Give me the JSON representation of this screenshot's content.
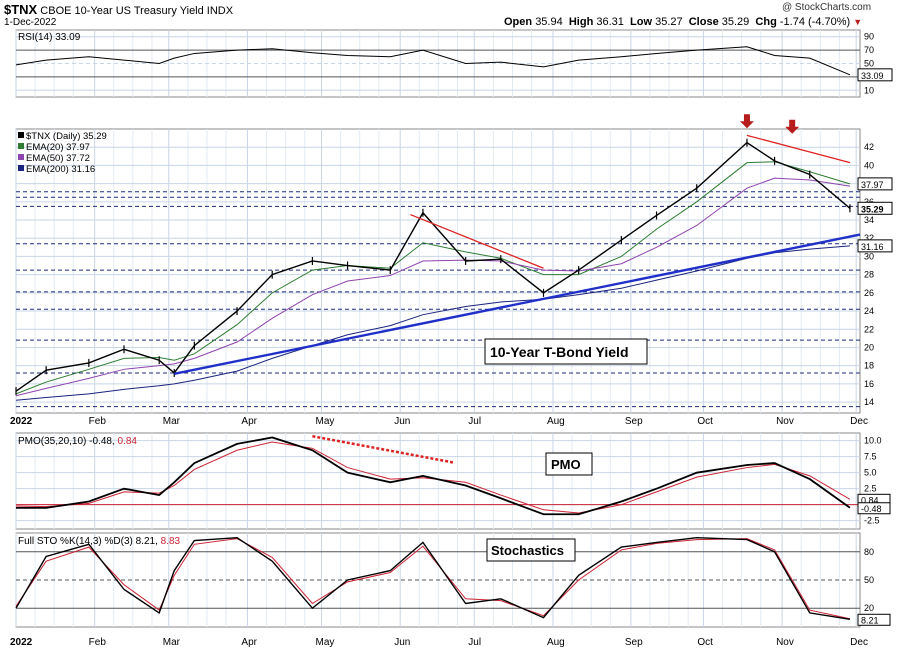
{
  "header": {
    "symbol": "$TNX",
    "name": "CBOE 10-Year US Treasury Yield INDX",
    "date": "1-Dec-2022",
    "open_label": "Open",
    "open": "35.94",
    "high_label": "High",
    "high": "36.31",
    "low_label": "Low",
    "low": "35.27",
    "close_label": "Close",
    "close": "35.29",
    "chg_label": "Chg",
    "chg": "-1.74 (-4.70%)",
    "watermark": "@ StockCharts.com"
  },
  "colors": {
    "price": "#000000",
    "ema20": "#2e7d32",
    "ema50": "#8e44ad",
    "ema200": "#1a237e",
    "trend_red": "#dd2222",
    "trend_blue": "#1f2fc8",
    "grid": "#c8d6e6",
    "dash": "#1c2a7a",
    "pmo": "#000000",
    "pmo_signal": "#cc2233",
    "sto_k": "#000000",
    "sto_d": "#cc2233",
    "rsi_fill": "#a08870",
    "arrow": "#b71c1c"
  },
  "rsi": {
    "label": "RSI(14) 33.09",
    "value_tag": "33.09",
    "ticks": [
      "90",
      "70",
      "50",
      "30",
      "10"
    ]
  },
  "price_panel": {
    "legend": [
      {
        "text": "$TNX (Daily) 35.29",
        "color": "#000000"
      },
      {
        "text": "EMA(20) 37.97",
        "color": "#2e7d32"
      },
      {
        "text": "EMA(50) 37.72",
        "color": "#8e44ad"
      },
      {
        "text": "EMA(200) 31.16",
        "color": "#1a237e"
      }
    ],
    "tags": [
      {
        "text": "37.97",
        "v": 37.97
      },
      {
        "text": "35.29",
        "v": 35.29
      },
      {
        "text": "31.16",
        "v": 31.16
      }
    ],
    "ticks": [
      "42",
      "40",
      "38",
      "36",
      "34",
      "32",
      "30",
      "28",
      "26",
      "24",
      "22",
      "20",
      "18",
      "16",
      "14"
    ],
    "annotation": "10-Year T-Bond Yield"
  },
  "pmo": {
    "label_main": "PMO(35,20,10) -0.48,",
    "label_signal": "0.84",
    "annotation": "PMO",
    "ticks": [
      "10.0",
      "7.5",
      "5.0",
      "2.5",
      "0.0",
      "-2.5"
    ],
    "tags": [
      {
        "text": "0.84",
        "v": 0.84
      },
      {
        "text": "-0.48",
        "v": -0.48
      }
    ]
  },
  "sto": {
    "label_main": "Full STO %K(14,3) %D(3) 8.21,",
    "label_signal": "8.83",
    "annotation": "Stochastics",
    "ticks": [
      "80",
      "50",
      "20"
    ],
    "tag": "8.21"
  },
  "x_axis": {
    "labels": [
      "2022",
      "Feb",
      "Mar",
      "Apr",
      "May",
      "Jun",
      "Jul",
      "Aug",
      "Sep",
      "Oct",
      "Nov",
      "Dec"
    ],
    "label_dates": [
      0,
      1.03,
      2.0,
      3.03,
      4.0,
      5.03,
      6.0,
      7.03,
      8.05,
      9.0,
      10.03,
      11.0
    ]
  },
  "chart_data": {
    "type": "line",
    "title": "$TNX CBOE 10-Year US Treasury Yield INDX",
    "xlabel": "",
    "ylabel": "",
    "ylim": [
      12.8,
      44
    ],
    "x": [
      "2022-01-03",
      "2022-01-15",
      "2022-02-01",
      "2022-02-15",
      "2022-03-01",
      "2022-03-07",
      "2022-03-15",
      "2022-04-01",
      "2022-04-15",
      "2022-05-01",
      "2022-05-15",
      "2022-06-01",
      "2022-06-14",
      "2022-07-01",
      "2022-07-15",
      "2022-08-01",
      "2022-08-15",
      "2022-09-01",
      "2022-09-15",
      "2022-10-01",
      "2022-10-21",
      "2022-11-01",
      "2022-11-15",
      "2022-12-01"
    ],
    "series": [
      {
        "name": "$TNX (Daily)",
        "values": [
          15.2,
          17.5,
          18.3,
          19.8,
          18.6,
          17.2,
          20.2,
          24.0,
          28.0,
          29.5,
          29.0,
          28.5,
          34.8,
          29.5,
          29.7,
          26.0,
          28.5,
          31.8,
          34.5,
          37.5,
          42.5,
          40.5,
          39.0,
          35.29
        ]
      },
      {
        "name": "EMA(20)",
        "values": [
          14.9,
          16.2,
          17.6,
          18.8,
          18.9,
          18.6,
          19.3,
          22.5,
          26.0,
          28.5,
          29.0,
          28.7,
          31.5,
          30.5,
          29.8,
          28.0,
          28.0,
          30.0,
          33.0,
          36.0,
          40.3,
          40.4,
          39.3,
          37.97
        ]
      },
      {
        "name": "EMA(50)",
        "values": [
          14.7,
          15.5,
          16.6,
          17.6,
          18.0,
          18.2,
          18.8,
          20.6,
          23.2,
          25.8,
          27.3,
          27.9,
          29.5,
          29.6,
          29.5,
          28.5,
          28.4,
          29.2,
          31.0,
          33.4,
          37.5,
          38.6,
          38.4,
          37.72
        ]
      },
      {
        "name": "EMA(200)",
        "values": [
          14.2,
          14.5,
          14.9,
          15.4,
          15.8,
          16.0,
          16.4,
          17.4,
          18.8,
          20.2,
          21.4,
          22.4,
          23.6,
          24.5,
          25.0,
          25.3,
          25.8,
          26.5,
          27.4,
          28.4,
          29.8,
          30.4,
          30.8,
          31.16
        ]
      }
    ],
    "trendlines": [
      {
        "color": "red",
        "from": [
          "2022-06-09",
          34.6
        ],
        "to": [
          "2022-08-01",
          28.7
        ]
      },
      {
        "color": "red",
        "from": [
          "2022-10-21",
          43.3
        ],
        "to": [
          "2022-12-01",
          40.3
        ]
      },
      {
        "color": "blue",
        "from": [
          "2022-03-07",
          17.1
        ],
        "to": [
          "2022-12-05",
          32.4
        ]
      }
    ],
    "rsi": {
      "name": "RSI(14)",
      "ylim": [
        0,
        100
      ],
      "values": [
        48,
        55,
        60,
        55,
        50,
        58,
        65,
        70,
        72,
        66,
        62,
        60,
        70,
        50,
        52,
        45,
        55,
        60,
        65,
        70,
        75,
        62,
        58,
        33.09
      ]
    },
    "pmo": {
      "name": "PMO(35,20,10)",
      "ylim": [
        -3.8,
        11.2
      ],
      "values": [
        -0.5,
        -0.5,
        0.5,
        2.5,
        1.5,
        3.5,
        6.5,
        9.5,
        10.5,
        8.5,
        5.0,
        3.5,
        4.5,
        3.0,
        1.0,
        -1.5,
        -1.5,
        0.5,
        2.5,
        5.0,
        6.2,
        6.5,
        4.0,
        -0.48
      ],
      "signal": [
        -0.2,
        -0.3,
        0.2,
        2.0,
        1.8,
        3.0,
        5.5,
        8.5,
        9.8,
        8.8,
        5.8,
        4.0,
        4.2,
        3.5,
        1.5,
        -0.8,
        -1.3,
        0.0,
        2.0,
        4.3,
        5.8,
        6.3,
        4.5,
        0.84
      ]
    },
    "sto": {
      "name": "Full STO %K(14,3) %D(3)",
      "ylim": [
        0,
        100
      ],
      "values": [
        20,
        75,
        88,
        40,
        15,
        60,
        92,
        95,
        70,
        20,
        50,
        60,
        90,
        25,
        30,
        10,
        55,
        85,
        90,
        95,
        93,
        80,
        15,
        8.21
      ],
      "signal": [
        22,
        70,
        85,
        45,
        18,
        55,
        88,
        94,
        74,
        25,
        48,
        58,
        86,
        30,
        28,
        12,
        50,
        82,
        89,
        93,
        94,
        82,
        18,
        8.83
      ]
    }
  }
}
